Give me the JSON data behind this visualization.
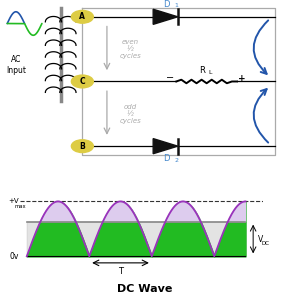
{
  "title": "DC Wave",
  "title_fontsize": 8,
  "title_fontweight": "bold",
  "bg_color": "#ffffff",
  "diode_color": "#111111",
  "arrow_color": "#2255aa",
  "label_color_blue": "#4488cc",
  "label_color_gray": "#888888",
  "label_A": "A",
  "label_B": "B",
  "label_C": "C",
  "label_D1": "D",
  "label_D2": "D",
  "label_RL": "R",
  "label_L": "L",
  "label_even": "even\n½\ncycles",
  "label_odd": "odd\n½\ncycles",
  "label_AC": "AC\nInput",
  "label_Vmax": "+V",
  "label_Vmax_sub": "max",
  "label_0V": "0v",
  "label_VDC": "V",
  "label_VDC_sub": "DC",
  "label_T": "T",
  "wave_color_fill": "#22bb22",
  "wave_color_line": "#9933bb",
  "vdc_fill_color": "#ddccee",
  "vdc_line_color": "#aaaaaa",
  "vmax_dash_color": "#333333",
  "circle_color": "#ddcc44"
}
